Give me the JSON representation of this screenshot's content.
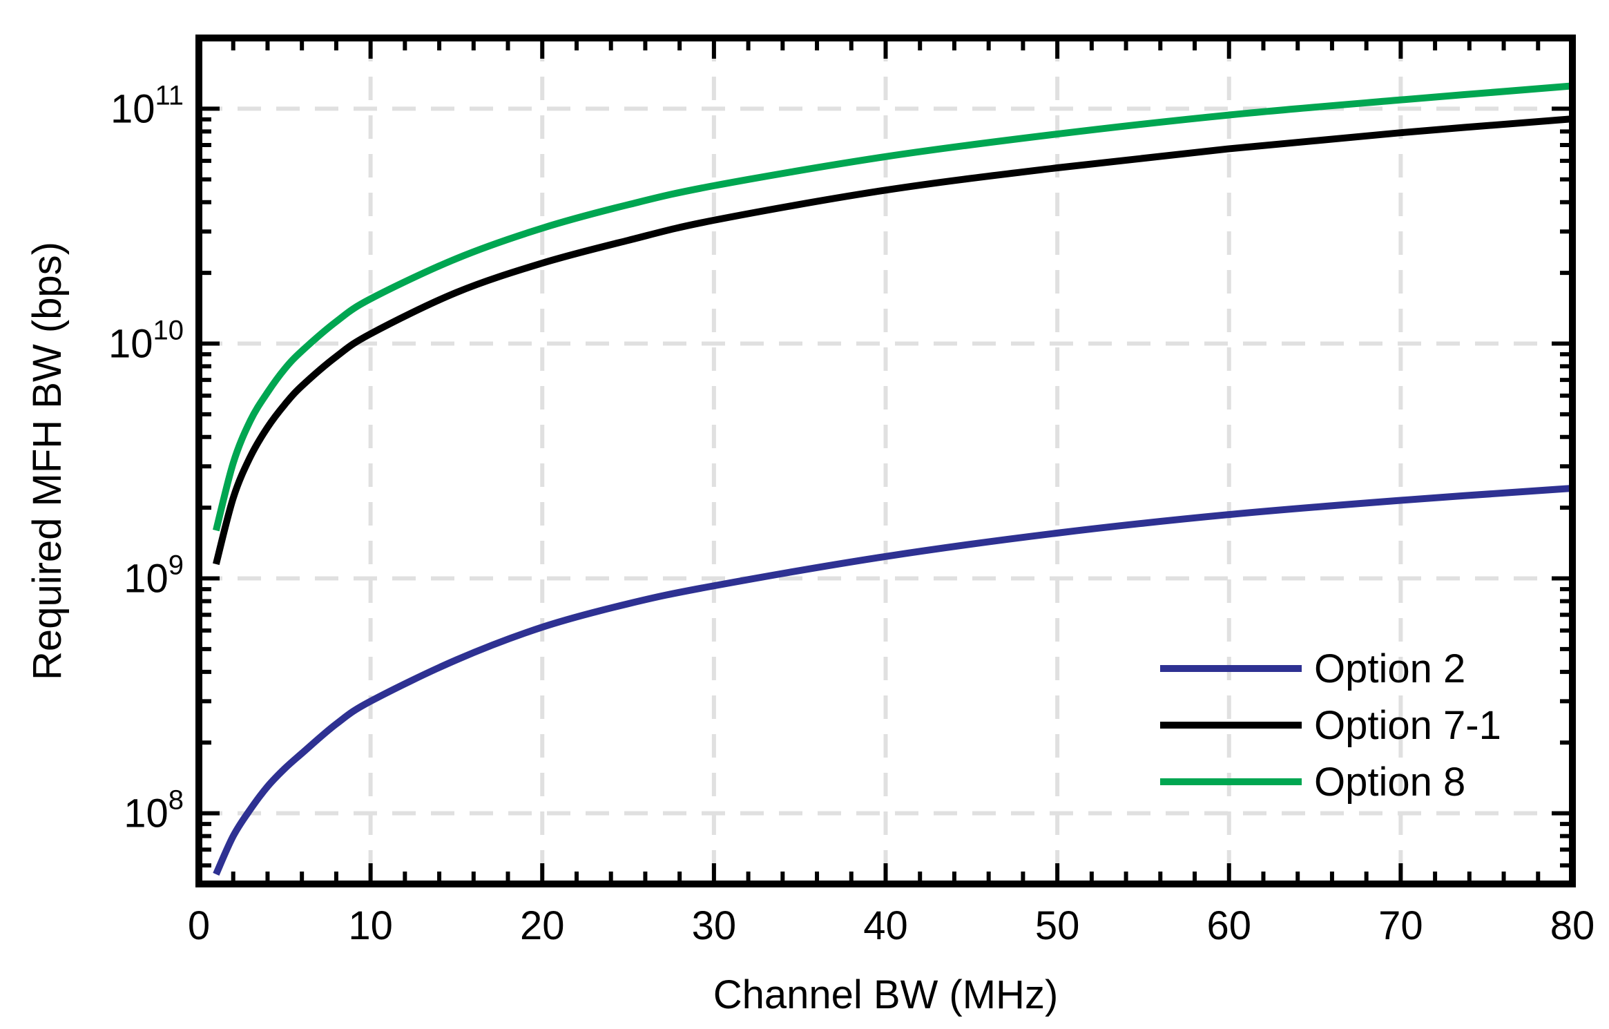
{
  "chart_data": {
    "type": "line",
    "xlabel": "Channel BW (MHz)",
    "ylabel": "Required MFH BW (bps)",
    "xlim": [
      0,
      80
    ],
    "ylim": [
      50000000,
      200000000000
    ],
    "yscale": "log",
    "grid": true,
    "legend_position": "bottom-right",
    "x_ticks": [
      0,
      10,
      20,
      30,
      40,
      50,
      60,
      70,
      80
    ],
    "x_tick_labels": [
      "0",
      "10",
      "20",
      "30",
      "40",
      "50",
      "60",
      "70",
      "80"
    ],
    "y_ticks": [
      {
        "value": 100000000,
        "base": "10",
        "exp": "8"
      },
      {
        "value": 1000000000,
        "base": "10",
        "exp": "9"
      },
      {
        "value": 10000000000,
        "base": "10",
        "exp": "10"
      },
      {
        "value": 100000000000,
        "base": "10",
        "exp": "11"
      }
    ],
    "series": [
      {
        "name": "Option 2",
        "color": "#2e3192",
        "x": [
          1,
          2,
          3,
          4,
          5,
          6,
          8,
          10,
          15,
          20,
          25,
          30,
          40,
          50,
          60,
          70,
          80
        ],
        "y": [
          55000000,
          80000000,
          104000000,
          130000000,
          155000000,
          180000000,
          240000000,
          300000000,
          450000000,
          620000000,
          780000000,
          930000000,
          1240000000,
          1560000000,
          1870000000,
          2150000000,
          2420000000
        ]
      },
      {
        "name": "Option 7-1",
        "color": "#000000",
        "x": [
          1,
          2,
          3,
          4,
          5,
          6,
          8,
          10,
          15,
          20,
          25,
          30,
          40,
          50,
          60,
          70,
          80
        ],
        "y": [
          1150000000,
          2200000000,
          3300000000,
          4400000000,
          5500000000,
          6600000000,
          8800000000,
          11000000000,
          16500000000,
          22000000000,
          27500000000,
          33500000000,
          45000000000,
          56000000000,
          67500000000,
          79000000000,
          90500000000
        ]
      },
      {
        "name": "Option 8",
        "color": "#00a651",
        "x": [
          1,
          2,
          3,
          4,
          5,
          6,
          8,
          10,
          15,
          20,
          25,
          30,
          40,
          50,
          60,
          70,
          80
        ],
        "y": [
          1600000000,
          3100000000,
          4700000000,
          6200000000,
          7800000000,
          9300000000,
          12400000000,
          15500000000,
          23000000000,
          31000000000,
          39000000000,
          47000000000,
          62500000000,
          78000000000,
          94000000000,
          109000000000,
          125000000000
        ]
      }
    ]
  }
}
